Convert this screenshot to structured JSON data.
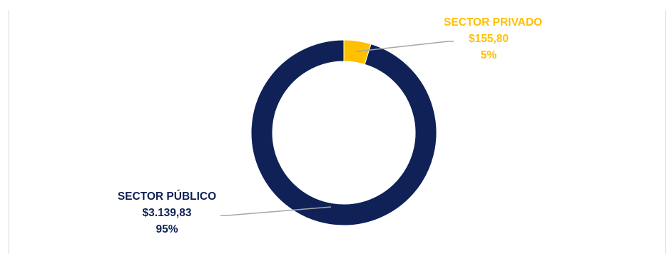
{
  "chart_data": {
    "type": "donut",
    "title": "",
    "categories": [
      "SECTOR PÚBLICO",
      "SECTOR PRIVADO"
    ],
    "values": [
      3139.83,
      155.8
    ],
    "value_labels": [
      "$3.139,83",
      "$155,80"
    ],
    "percent_labels": [
      "95%",
      "5%"
    ],
    "colors": [
      "#0f2157",
      "#ffc000"
    ],
    "legend": "none",
    "data_labels": "outside with leader lines"
  },
  "colors": {
    "leader_line": "#a6a6a6",
    "frame": "#d9d9d9",
    "background": "#ffffff"
  }
}
